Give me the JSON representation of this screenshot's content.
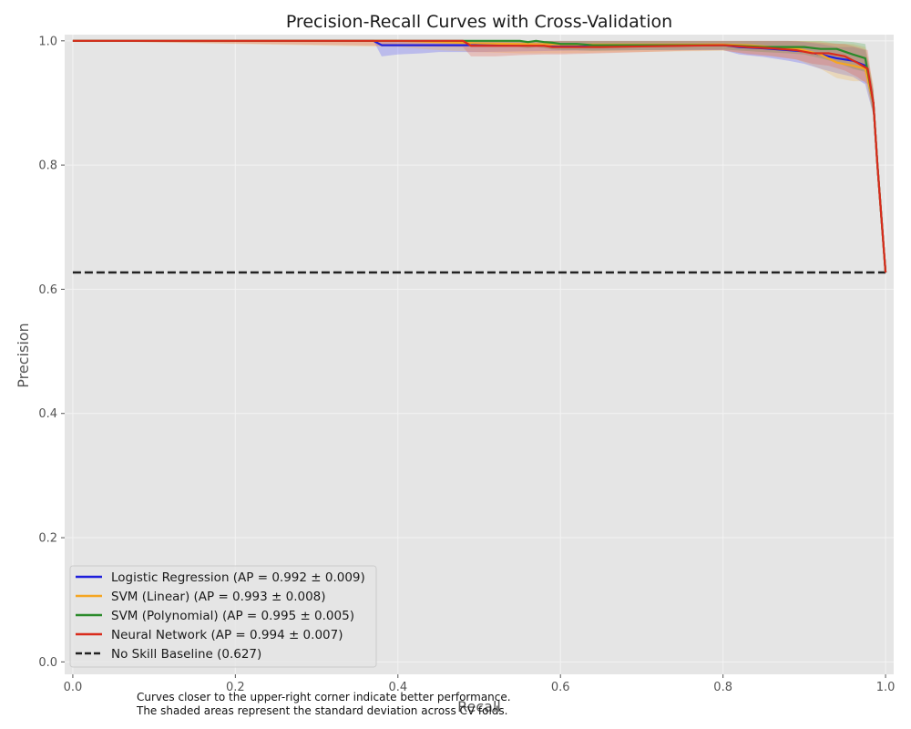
{
  "chart_data": {
    "type": "line",
    "title": "Precision-Recall Curves with Cross-Validation",
    "xlabel": "Recall",
    "ylabel": "Precision",
    "xlim": [
      -0.01,
      1.01
    ],
    "ylim": [
      -0.02,
      1.01
    ],
    "xticks": [
      "0.0",
      "0.2",
      "0.4",
      "0.6",
      "0.8",
      "1.0"
    ],
    "yticks": [
      "0.0",
      "0.2",
      "0.4",
      "0.6",
      "0.8",
      "1.0"
    ],
    "grid": true,
    "legend_position": "lower-left",
    "series": [
      {
        "name": "Logistic Regression (AP = 0.992 ± 0.009)",
        "color": "#1f1fdc",
        "band_color": "#4040ff",
        "x": [
          0.0,
          0.37,
          0.38,
          0.4,
          0.43,
          0.45,
          0.5,
          0.55,
          0.6,
          0.7,
          0.8,
          0.82,
          0.85,
          0.88,
          0.9,
          0.92,
          0.94,
          0.96,
          0.975,
          0.985,
          0.99,
          1.0
        ],
        "y": [
          1.0,
          1.0,
          0.993,
          0.993,
          0.993,
          0.993,
          0.993,
          0.993,
          0.993,
          0.993,
          0.993,
          0.99,
          0.988,
          0.985,
          0.983,
          0.978,
          0.972,
          0.968,
          0.96,
          0.9,
          0.8,
          0.627
        ],
        "y_lower": [
          1.0,
          1.0,
          0.975,
          0.978,
          0.98,
          0.982,
          0.982,
          0.983,
          0.984,
          0.985,
          0.985,
          0.978,
          0.974,
          0.968,
          0.963,
          0.955,
          0.948,
          0.942,
          0.93,
          0.88,
          0.78,
          0.627
        ],
        "y_upper": [
          1.0,
          1.0,
          1.0,
          1.0,
          1.0,
          1.0,
          1.0,
          1.0,
          1.0,
          1.0,
          1.0,
          1.0,
          1.0,
          1.0,
          0.998,
          0.995,
          0.99,
          0.99,
          0.985,
          0.92,
          0.82,
          0.627
        ]
      },
      {
        "name": "SVM (Linear) (AP = 0.993 ± 0.008)",
        "color": "#f5a623",
        "band_color": "#f5b040",
        "x": [
          0.0,
          0.4,
          0.45,
          0.5,
          0.55,
          0.6,
          0.7,
          0.8,
          0.83,
          0.86,
          0.89,
          0.92,
          0.94,
          0.96,
          0.975,
          0.985,
          0.99,
          1.0
        ],
        "y": [
          1.0,
          1.0,
          0.998,
          0.996,
          0.995,
          0.994,
          0.994,
          0.994,
          0.993,
          0.99,
          0.988,
          0.978,
          0.965,
          0.96,
          0.955,
          0.9,
          0.8,
          0.627
        ],
        "y_lower": [
          1.0,
          0.99,
          0.985,
          0.982,
          0.98,
          0.98,
          0.982,
          0.984,
          0.98,
          0.976,
          0.97,
          0.955,
          0.94,
          0.935,
          0.935,
          0.88,
          0.78,
          0.627
        ],
        "y_upper": [
          1.0,
          1.0,
          1.0,
          1.0,
          1.0,
          1.0,
          1.0,
          1.0,
          1.0,
          1.0,
          1.0,
          1.0,
          0.995,
          0.995,
          0.99,
          0.93,
          0.82,
          0.627
        ]
      },
      {
        "name": "SVM (Polynomial) (AP = 0.995 ± 0.005)",
        "color": "#2a8a2a",
        "band_color": "#3da03d",
        "x": [
          0.0,
          0.4,
          0.5,
          0.55,
          0.56,
          0.57,
          0.58,
          0.59,
          0.6,
          0.62,
          0.64,
          0.7,
          0.8,
          0.85,
          0.88,
          0.9,
          0.92,
          0.94,
          0.96,
          0.975,
          0.985,
          0.99,
          1.0
        ],
        "y": [
          1.0,
          1.0,
          1.0,
          1.0,
          0.998,
          1.0,
          0.998,
          0.997,
          0.995,
          0.995,
          0.993,
          0.993,
          0.993,
          0.99,
          0.99,
          0.99,
          0.987,
          0.987,
          0.978,
          0.972,
          0.9,
          0.8,
          0.627
        ],
        "y_lower": [
          1.0,
          1.0,
          0.995,
          0.99,
          0.988,
          0.99,
          0.988,
          0.986,
          0.985,
          0.985,
          0.984,
          0.985,
          0.986,
          0.982,
          0.98,
          0.978,
          0.972,
          0.965,
          0.955,
          0.95,
          0.88,
          0.78,
          0.627
        ],
        "y_upper": [
          1.0,
          1.0,
          1.0,
          1.0,
          1.0,
          1.0,
          1.0,
          1.0,
          1.0,
          1.0,
          1.0,
          1.0,
          1.0,
          1.0,
          1.0,
          1.0,
          1.0,
          1.0,
          0.998,
          0.995,
          0.92,
          0.82,
          0.627
        ]
      },
      {
        "name": "Neural Network (AP = 0.994 ± 0.007)",
        "color": "#d92b1c",
        "band_color": "#e8503f",
        "x": [
          0.0,
          0.48,
          0.49,
          0.52,
          0.55,
          0.58,
          0.59,
          0.6,
          0.65,
          0.7,
          0.75,
          0.8,
          0.83,
          0.86,
          0.89,
          0.91,
          0.93,
          0.95,
          0.965,
          0.978,
          0.985,
          0.99,
          1.0
        ],
        "y": [
          1.0,
          1.0,
          0.992,
          0.992,
          0.992,
          0.992,
          0.99,
          0.99,
          0.99,
          0.991,
          0.992,
          0.993,
          0.99,
          0.988,
          0.985,
          0.98,
          0.98,
          0.975,
          0.965,
          0.955,
          0.9,
          0.8,
          0.627
        ],
        "y_lower": [
          1.0,
          0.99,
          0.975,
          0.975,
          0.977,
          0.978,
          0.978,
          0.978,
          0.98,
          0.982,
          0.984,
          0.985,
          0.978,
          0.975,
          0.97,
          0.963,
          0.96,
          0.952,
          0.942,
          0.93,
          0.88,
          0.78,
          0.627
        ],
        "y_upper": [
          1.0,
          1.0,
          1.0,
          1.0,
          1.0,
          1.0,
          1.0,
          1.0,
          1.0,
          1.0,
          1.0,
          1.0,
          1.0,
          1.0,
          1.0,
          0.998,
          0.996,
          0.995,
          0.99,
          0.985,
          0.92,
          0.82,
          0.627
        ]
      }
    ],
    "baseline": {
      "name": "No Skill Baseline (0.627)",
      "value": 0.627,
      "color": "#222222",
      "style": "dashed"
    },
    "annotation": [
      "Curves closer to the upper-right corner indicate better performance.",
      "The shaded areas represent the standard deviation across CV folds."
    ],
    "style": {
      "plot_background": "#e5e5e5",
      "grid_color": "#f3f3f3",
      "legend_background": "#e5e5e5",
      "legend_border": "#cccccc"
    }
  }
}
